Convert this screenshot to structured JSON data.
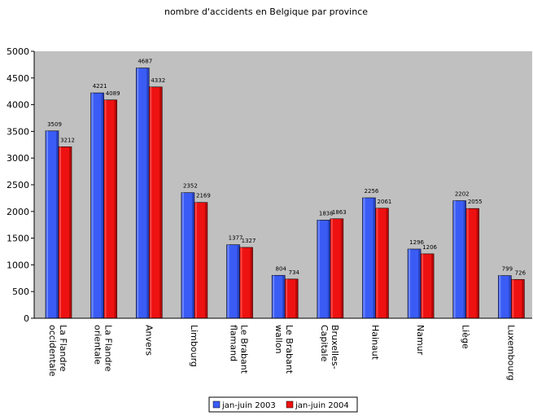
{
  "chart_data": {
    "type": "bar",
    "title": "nombre d'accidents en Belgique par province",
    "categories": [
      "La Flandre occidentale",
      "La Flandre orientale",
      "Anvers",
      "Limbourg",
      "Le Brabant flamand",
      "Le Brabant wallon",
      "Bruxelles-Capitale",
      "Hainaut",
      "Namur",
      "Liège",
      "Luxembourg"
    ],
    "series": [
      {
        "name": "jan-juin 2003",
        "color": "#3a5cf5",
        "values": [
          3509,
          4221,
          4687,
          2352,
          1377,
          804,
          1838,
          2256,
          1296,
          2202,
          799
        ],
        "labels": [
          "3509",
          "4221",
          "4687",
          "2352",
          "1377",
          "804",
          "1838",
          "2256",
          "1296",
          "2202",
          "799"
        ]
      },
      {
        "name": "jan-juin 2004",
        "color": "#ee1111",
        "values": [
          3212,
          4089,
          4332,
          2169,
          1327,
          734,
          1863,
          2061,
          1206,
          2055,
          726
        ],
        "labels": [
          "3212",
          "4089",
          "4332",
          "2169",
          "1327",
          "734",
          "1863",
          "2061",
          "1206",
          "2055",
          "726"
        ]
      }
    ],
    "yticks": [
      "0",
      "500",
      "1000",
      "1500",
      "2000",
      "2500",
      "3000",
      "3500",
      "4000",
      "4500",
      "5000"
    ],
    "ylim": [
      0,
      5000
    ],
    "xlabel": "",
    "ylabel": "",
    "grid": false,
    "legend_position": "bottom",
    "plot_background": "#c0c0c0"
  }
}
